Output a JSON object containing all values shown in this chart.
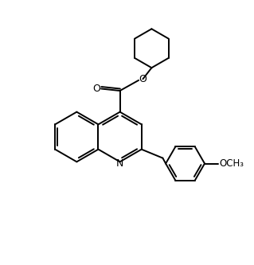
{
  "line_color": "#000000",
  "background_color": "#ffffff",
  "line_width": 1.4,
  "figsize": [
    3.19,
    3.33
  ],
  "dpi": 100,
  "xlim": [
    0,
    10
  ],
  "ylim": [
    0,
    10.45
  ]
}
